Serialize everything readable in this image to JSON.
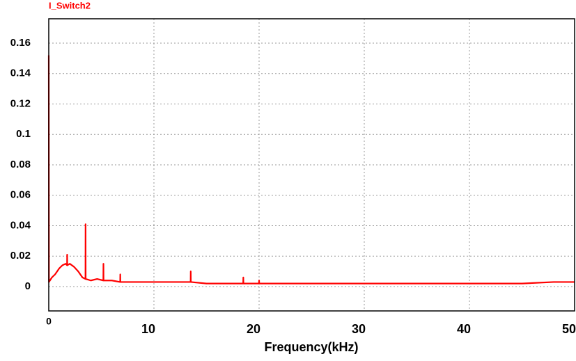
{
  "chart_data": {
    "type": "line",
    "title": "I_Switch2",
    "x_label": "Frequency(kHz)",
    "series": [
      {
        "name": "I_Switch2",
        "color": "#ff0000",
        "x": [
          0,
          0.02,
          0.3,
          0.6,
          1.0,
          1.3,
          1.6,
          1.74,
          1.75,
          1.76,
          2.0,
          2.4,
          2.8,
          3.2,
          3.49,
          3.5,
          3.51,
          4.0,
          4.6,
          5.19,
          5.2,
          5.21,
          6.0,
          6.79,
          6.8,
          6.81,
          8,
          10,
          12,
          13.49,
          13.5,
          13.51,
          15,
          18.49,
          18.5,
          18.51,
          19.99,
          20,
          20.01,
          25,
          30,
          35,
          40,
          45,
          48,
          50
        ],
        "values": [
          0.152,
          0.003,
          0.006,
          0.008,
          0.012,
          0.014,
          0.015,
          0.014,
          0.021,
          0.014,
          0.015,
          0.013,
          0.01,
          0.006,
          0.005,
          0.041,
          0.005,
          0.004,
          0.005,
          0.004,
          0.015,
          0.004,
          0.004,
          0.003,
          0.008,
          0.003,
          0.003,
          0.003,
          0.003,
          0.003,
          0.01,
          0.003,
          0.002,
          0.002,
          0.006,
          0.002,
          0.002,
          0.004,
          0.002,
          0.002,
          0.002,
          0.002,
          0.002,
          0.002,
          0.003,
          0.003
        ]
      }
    ],
    "xlim": [
      0,
      50
    ],
    "xticks": [
      0,
      10,
      20,
      30,
      40,
      50
    ],
    "ylim": [
      -0.016,
      0.176
    ],
    "yticks": [
      0,
      0.02,
      0.04,
      0.06,
      0.08,
      0.1,
      0.12,
      0.14,
      0.16
    ],
    "grid": true
  }
}
